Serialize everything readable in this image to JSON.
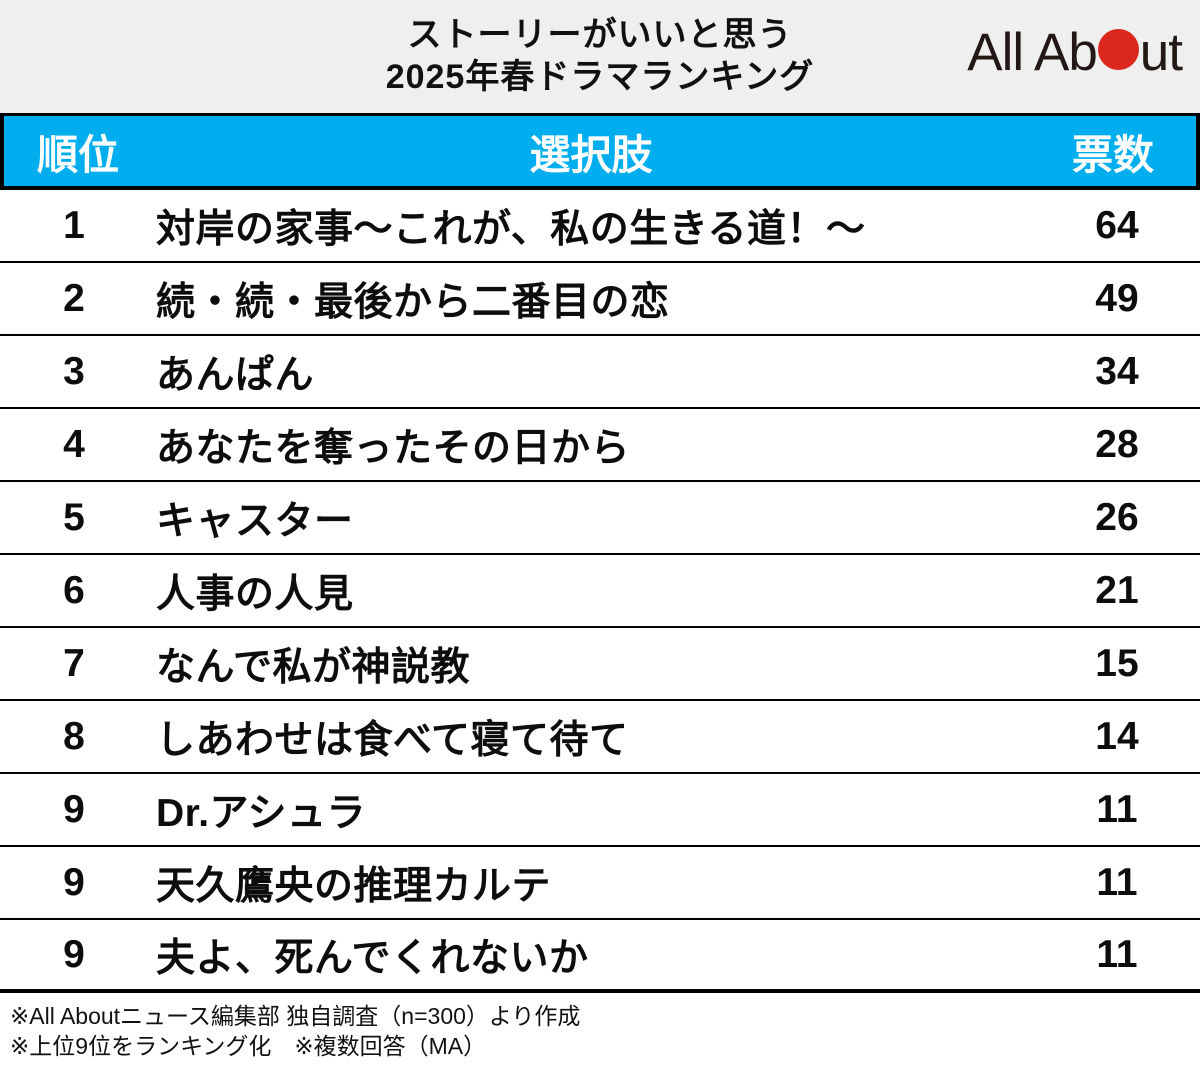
{
  "header": {
    "title_line1": "ストーリーがいいと思う",
    "title_line2": "2025年春ドラマランキング",
    "logo": {
      "text_before": "All Ab",
      "text_after": "ut",
      "dot_color": "#da291c"
    }
  },
  "table": {
    "columns": {
      "rank": "順位",
      "choice": "選択肢",
      "votes": "票数"
    },
    "rows": [
      {
        "rank": "1",
        "title": "対岸の家事～これが、私の生きる道！～",
        "votes": "64"
      },
      {
        "rank": "2",
        "title": "続・続・最後から二番目の恋",
        "votes": "49"
      },
      {
        "rank": "3",
        "title": "あんぱん",
        "votes": "34"
      },
      {
        "rank": "4",
        "title": "あなたを奪ったその日から",
        "votes": "28"
      },
      {
        "rank": "5",
        "title": "キャスター",
        "votes": "26"
      },
      {
        "rank": "6",
        "title": "人事の人見",
        "votes": "21"
      },
      {
        "rank": "7",
        "title": "なんで私が神説教",
        "votes": "15"
      },
      {
        "rank": "8",
        "title": "しあわせは食べて寝て待て",
        "votes": "14"
      },
      {
        "rank": "9",
        "title": "Dr.アシュラ",
        "votes": "11"
      },
      {
        "rank": "9",
        "title": "天久鷹央の推理カルテ",
        "votes": "11"
      },
      {
        "rank": "9",
        "title": "夫よ、死んでくれないか",
        "votes": "11"
      }
    ]
  },
  "footer": {
    "line1": "※All Aboutニュース編集部 独自調査（n=300）より作成",
    "line2": "※上位9位をランキング化　※複数回答（MA）"
  },
  "colors": {
    "band_cyan": "#00aeef",
    "header_gray": "#efefef",
    "logo_red": "#da291c",
    "text_black": "#0d0d0d"
  },
  "chart_data": {
    "type": "table",
    "title": "ストーリーがいいと思う 2025年春ドラマランキング",
    "columns": [
      "順位",
      "選択肢",
      "票数"
    ],
    "categories": [
      "対岸の家事～これが、私の生きる道！～",
      "続・続・最後から二番目の恋",
      "あんぱん",
      "あなたを奪ったその日から",
      "キャスター",
      "人事の人見",
      "なんで私が神説教",
      "しあわせは食べて寝て待て",
      "Dr.アシュラ",
      "天久鷹央の推理カルテ",
      "夫よ、死んでくれないか"
    ],
    "ranks": [
      1,
      2,
      3,
      4,
      5,
      6,
      7,
      8,
      9,
      9,
      9
    ],
    "values": [
      64,
      49,
      34,
      28,
      26,
      21,
      15,
      14,
      11,
      11,
      11
    ],
    "source_note": "※All Aboutニュース編集部 独自調査（n=300）より作成 ※上位9位をランキング化 ※複数回答（MA）"
  }
}
